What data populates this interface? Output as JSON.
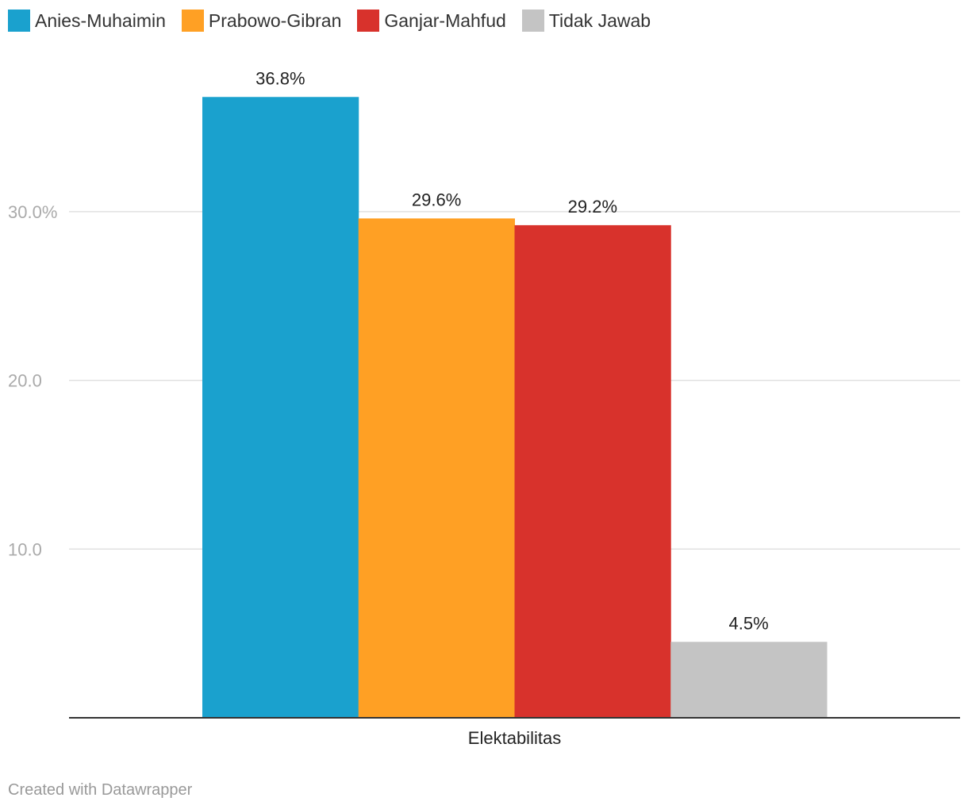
{
  "legend": [
    {
      "label": "Anies-Muhaimin",
      "color": "#1aa1ce"
    },
    {
      "label": "Prabowo-Gibran",
      "color": "#ffa024"
    },
    {
      "label": "Ganjar-Mahfud",
      "color": "#d8322c"
    },
    {
      "label": "Tidak Jawab",
      "color": "#c4c4c4"
    }
  ],
  "footer": {
    "credit": "Created with Datawrapper"
  },
  "chart_data": {
    "type": "bar",
    "categories": [
      "Elektabilitas"
    ],
    "series": [
      {
        "name": "Anies-Muhaimin",
        "values": [
          36.8
        ],
        "label": "36.8%",
        "color": "#1aa1ce"
      },
      {
        "name": "Prabowo-Gibran",
        "values": [
          29.6
        ],
        "label": "29.6%",
        "color": "#ffa024"
      },
      {
        "name": "Ganjar-Mahfud",
        "values": [
          29.2
        ],
        "label": "29.2%",
        "color": "#d8322c"
      },
      {
        "name": "Tidak Jawab",
        "values": [
          4.5
        ],
        "label": "4.5%",
        "color": "#c4c4c4"
      }
    ],
    "yticks": [
      {
        "value": 10,
        "label": "10.0"
      },
      {
        "value": 20,
        "label": "20.0"
      },
      {
        "value": 30,
        "label": "30.0%"
      }
    ],
    "ylim": [
      0,
      40
    ],
    "grid": true,
    "legend_position": "top-left"
  }
}
